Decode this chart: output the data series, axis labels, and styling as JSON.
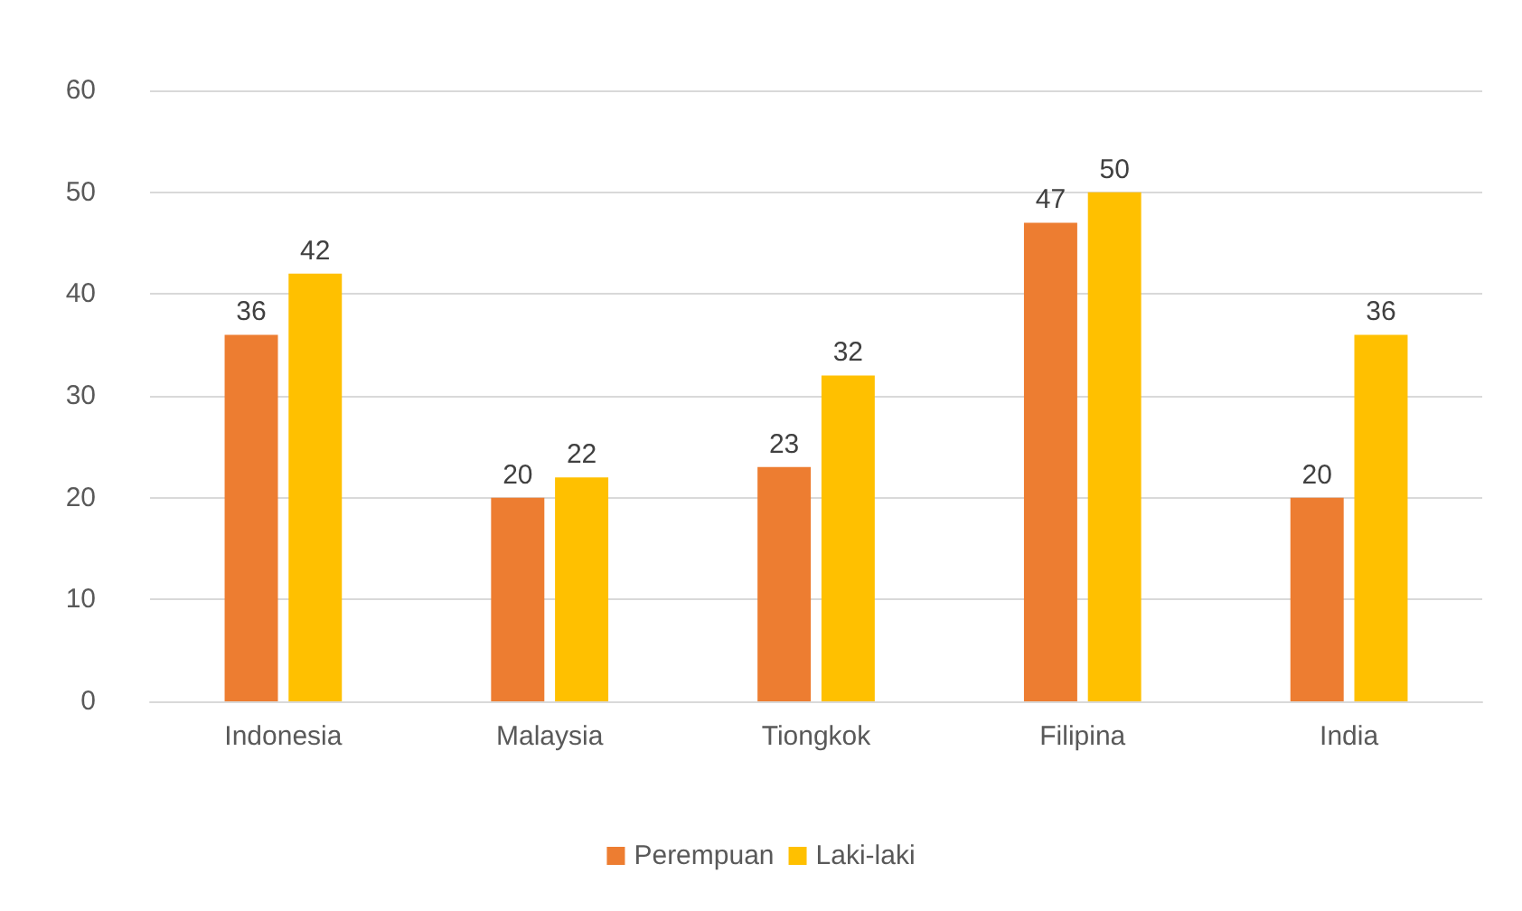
{
  "chart_data": {
    "type": "bar",
    "categories": [
      "Indonesia",
      "Malaysia",
      "Tiongkok",
      "Filipina",
      "India"
    ],
    "series": [
      {
        "name": "Perempuan",
        "color": "#ed7d31",
        "values": [
          36,
          20,
          23,
          47,
          20
        ]
      },
      {
        "name": "Laki-laki",
        "color": "#ffc000",
        "values": [
          42,
          22,
          32,
          50,
          36
        ]
      }
    ],
    "ylim": [
      0,
      60
    ],
    "yticks": [
      0,
      10,
      20,
      30,
      40,
      50,
      60
    ],
    "grid": "y",
    "legend": "bottom",
    "data_labels": true
  }
}
